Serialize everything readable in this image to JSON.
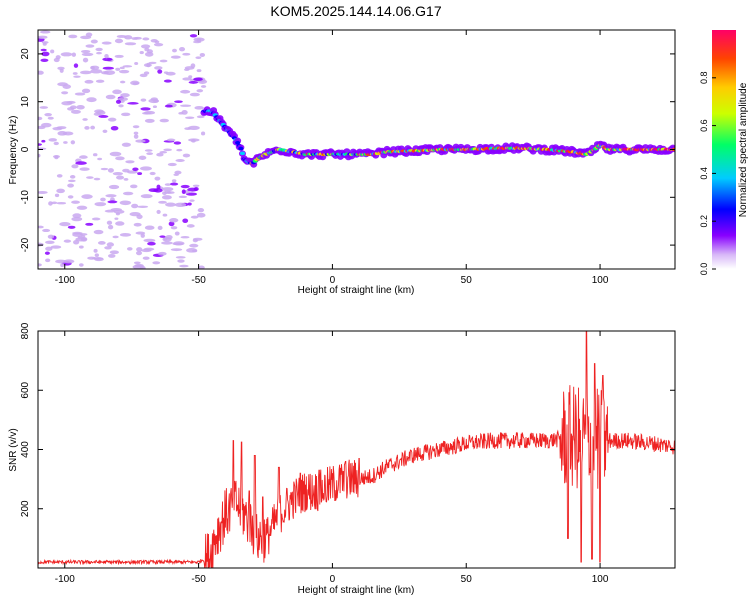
{
  "title": "KOM5.2025.144.14.06.G17",
  "chart_data": [
    {
      "type": "heatmap",
      "xlabel": "Height of straight line (km)",
      "ylabel": "Frequency (Hz)",
      "xlim": [
        -110,
        128
      ],
      "ylim": [
        -25,
        25
      ],
      "xticks": [
        -100,
        -50,
        0,
        50,
        100
      ],
      "yticks": [
        -20,
        -10,
        0,
        10,
        20
      ],
      "colorbar": {
        "label": "Normalized spectral amplitude",
        "range": [
          0,
          1
        ],
        "ticks": [
          "0.0",
          "0.2",
          "0.4",
          "0.6",
          "0.8"
        ],
        "colors": [
          "#ffffff",
          "#c9a8f0",
          "#8800ff",
          "#0000ff",
          "#00ccff",
          "#00ff66",
          "#ccff00",
          "#ffcc00",
          "#ff4400",
          "#ff0066"
        ]
      },
      "ridge": [
        [
          -48,
          8
        ],
        [
          -45,
          8
        ],
        [
          -42,
          6
        ],
        [
          -39,
          4
        ],
        [
          -36,
          2
        ],
        [
          -34,
          0
        ],
        [
          -33,
          -2
        ],
        [
          -30,
          -3
        ],
        [
          -28,
          -2
        ],
        [
          -25,
          -1
        ],
        [
          -20,
          0
        ],
        [
          -15,
          -0.5
        ],
        [
          -10,
          -1
        ],
        [
          -5,
          -1
        ],
        [
          0,
          -1
        ],
        [
          5,
          -1
        ],
        [
          10,
          -1
        ],
        [
          15,
          -1
        ],
        [
          20,
          -0.5
        ],
        [
          30,
          -0.3
        ],
        [
          40,
          0
        ],
        [
          50,
          0
        ],
        [
          60,
          0.2
        ],
        [
          70,
          0.3
        ],
        [
          80,
          0
        ],
        [
          90,
          -0.5
        ],
        [
          95,
          -1
        ],
        [
          98,
          0
        ],
        [
          100,
          1
        ],
        [
          103,
          0
        ],
        [
          110,
          0
        ],
        [
          120,
          0
        ],
        [
          128,
          0
        ]
      ],
      "noise_region_x": [
        -110,
        -48
      ],
      "grid": false
    },
    {
      "type": "line",
      "xlabel": "Height of straight line (km)",
      "ylabel": "SNR (v/v)",
      "xlim": [
        -110,
        128
      ],
      "ylim": [
        0,
        800
      ],
      "xticks": [
        -100,
        -50,
        0,
        50,
        100
      ],
      "yticks": [
        200,
        400,
        600,
        800
      ],
      "series": [
        {
          "color": "#ee2222",
          "baseline": [
            [
              -110,
              20
            ],
            [
              -50,
              20
            ],
            [
              -46,
              40
            ],
            [
              -44,
              100
            ],
            [
              -40,
              180
            ],
            [
              -36,
              220
            ],
            [
              -32,
              170
            ],
            [
              -28,
              100
            ],
            [
              -24,
              110
            ],
            [
              -20,
              180
            ],
            [
              -15,
              230
            ],
            [
              -10,
              260
            ],
            [
              -5,
              260
            ],
            [
              0,
              280
            ],
            [
              5,
              300
            ],
            [
              10,
              300
            ],
            [
              15,
              310
            ],
            [
              20,
              340
            ],
            [
              25,
              360
            ],
            [
              30,
              380
            ],
            [
              40,
              400
            ],
            [
              50,
              420
            ],
            [
              60,
              430
            ],
            [
              70,
              430
            ],
            [
              80,
              430
            ],
            [
              90,
              440
            ],
            [
              100,
              430
            ],
            [
              110,
              430
            ],
            [
              120,
              420
            ],
            [
              128,
              410
            ]
          ],
          "spikes": [
            [
              -37,
              430
            ],
            [
              -34,
              425
            ],
            [
              -31,
              260
            ],
            [
              -29,
              380
            ],
            [
              -26,
              240
            ],
            [
              -20,
              340
            ],
            [
              -12,
              320
            ],
            [
              -5,
              330
            ],
            [
              5,
              360
            ],
            [
              10,
              370
            ],
            [
              88,
              100
            ],
            [
              93,
              20
            ],
            [
              95,
              800
            ],
            [
              97,
              30
            ],
            [
              98,
              690
            ],
            [
              100,
              20
            ],
            [
              101,
              650
            ]
          ]
        }
      ],
      "grid": false
    }
  ]
}
